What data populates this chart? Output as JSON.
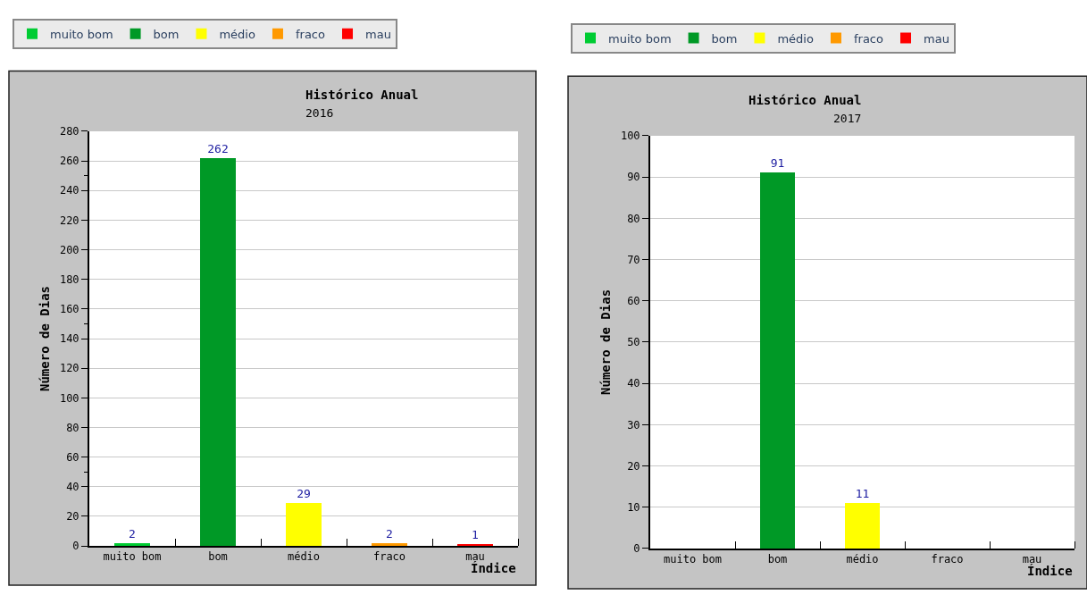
{
  "chart_data": [
    {
      "type": "bar",
      "title": "Histórico Anual",
      "subtitle": "2016",
      "xlabel": "Índice",
      "ylabel": "Número de Dias",
      "categories": [
        "muito bom",
        "bom",
        "médio",
        "fraco",
        "mau"
      ],
      "stacked": true,
      "series": [
        {
          "name": "muito bom",
          "color": "#00cc33",
          "values": [
            2,
            null,
            null,
            null,
            null
          ]
        },
        {
          "name": "bom",
          "color": "#009926",
          "values": [
            null,
            262,
            null,
            null,
            null
          ]
        },
        {
          "name": "médio",
          "color": "#ffff00",
          "values": [
            null,
            null,
            29,
            null,
            null
          ]
        },
        {
          "name": "fraco",
          "color": "#ff9900",
          "values": [
            null,
            null,
            null,
            2,
            null
          ]
        },
        {
          "name": "mau",
          "color": "#ff0000",
          "values": [
            null,
            null,
            null,
            null,
            1
          ]
        }
      ],
      "ylim": [
        0,
        280
      ],
      "yticks": [
        0,
        20,
        40,
        60,
        80,
        100,
        120,
        140,
        160,
        180,
        200,
        220,
        240,
        260,
        280
      ],
      "grid": "y",
      "legend": "top",
      "data_labels": true
    },
    {
      "type": "bar",
      "title": "Histórico Anual",
      "subtitle": "2017",
      "xlabel": "Índice",
      "ylabel": "Número de Dias",
      "categories": [
        "muito bom",
        "bom",
        "médio",
        "fraco",
        "mau"
      ],
      "stacked": true,
      "series": [
        {
          "name": "muito bom",
          "color": "#00cc33",
          "values": [
            0,
            null,
            null,
            null,
            null
          ],
          "value_labels": [
            null,
            null,
            null,
            null,
            null
          ]
        },
        {
          "name": "bom",
          "color": "#009926",
          "values": [
            null,
            91,
            null,
            null,
            null
          ],
          "value_labels": [
            null,
            "91",
            null,
            null,
            null
          ]
        },
        {
          "name": "médio",
          "color": "#ffff00",
          "values": [
            null,
            null,
            11,
            null,
            null
          ],
          "value_labels": [
            null,
            null,
            "11",
            null,
            null
          ]
        },
        {
          "name": "fraco",
          "color": "#ff9900",
          "values": [
            null,
            null,
            null,
            0,
            null
          ],
          "value_labels": [
            null,
            null,
            null,
            null,
            null
          ]
        },
        {
          "name": "mau",
          "color": "#ff0000",
          "values": [
            null,
            null,
            null,
            null,
            0
          ],
          "value_labels": [
            null,
            null,
            null,
            null,
            null
          ]
        }
      ],
      "ylim": [
        0,
        100
      ],
      "yticks": [
        0,
        10,
        20,
        30,
        40,
        50,
        60,
        70,
        80,
        90,
        100
      ],
      "grid": "y",
      "legend": "top"
    }
  ]
}
